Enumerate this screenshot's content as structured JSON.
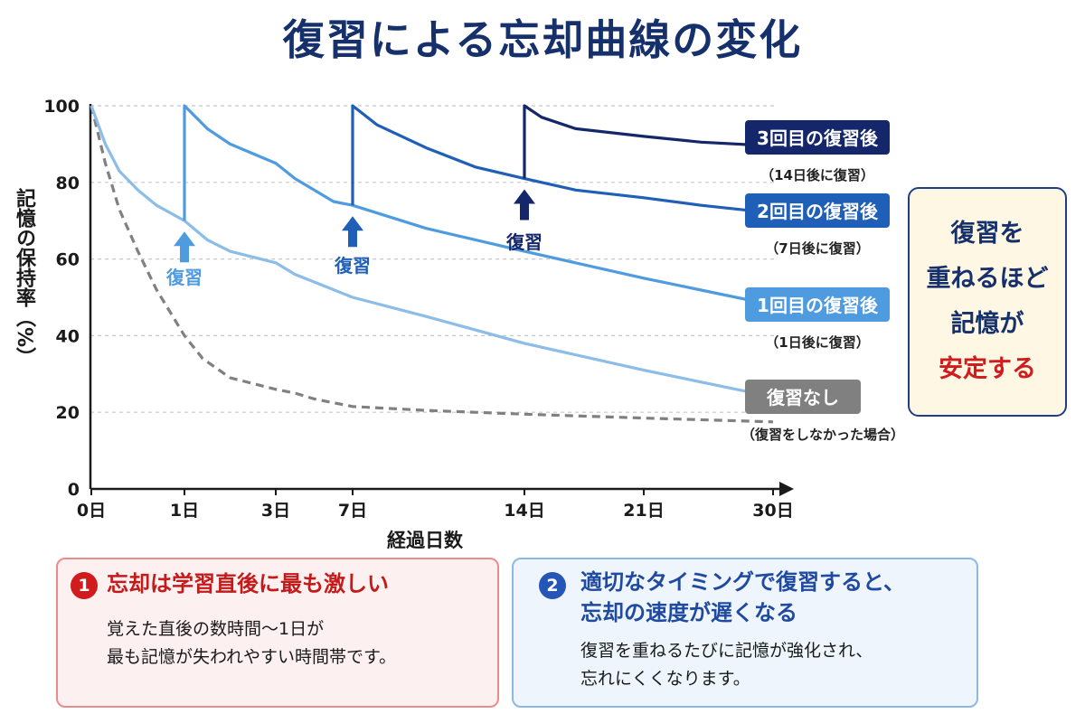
{
  "title": "復習による忘却曲線の変化",
  "colors": {
    "title": "#15306b",
    "no_review": "#808080",
    "review1": "#8cbce8",
    "review2": "#4e9be0",
    "review3": "#1f5fb8",
    "review4": "#15276b",
    "accent_red": "#d01c1c"
  },
  "chart_data": {
    "type": "line",
    "title": "復習による忘却曲線の変化",
    "xlabel": "経過日数",
    "ylabel": "記憶の保持率（%）",
    "x_ticks": [
      "0日",
      "1日",
      "3日",
      "7日",
      "14日",
      "21日",
      "30日"
    ],
    "x_tick_days": [
      0,
      1,
      3,
      7,
      14,
      21,
      30
    ],
    "y_ticks": [
      0,
      20,
      40,
      60,
      80,
      100
    ],
    "ylim": [
      0,
      100
    ],
    "grid": "horizontal dashed",
    "series": [
      {
        "name": "復習なし",
        "note": "（復習をしなかった場合）",
        "style": "dashed",
        "points": [
          [
            0,
            100
          ],
          [
            0.15,
            85
          ],
          [
            0.3,
            73
          ],
          [
            0.5,
            62
          ],
          [
            0.7,
            52
          ],
          [
            1,
            40
          ],
          [
            1.4,
            34
          ],
          [
            2,
            29
          ],
          [
            3,
            26
          ],
          [
            4,
            25
          ],
          [
            5,
            23.5
          ],
          [
            7,
            21.5
          ],
          [
            10,
            20.5
          ],
          [
            14,
            19.5
          ],
          [
            21,
            18.5
          ],
          [
            30,
            17.5
          ]
        ]
      },
      {
        "name": "",
        "style": "solid",
        "points": [
          [
            0,
            100
          ],
          [
            0.15,
            90
          ],
          [
            0.3,
            83
          ],
          [
            0.5,
            78
          ],
          [
            0.7,
            74
          ],
          [
            1,
            70
          ],
          [
            1.5,
            65
          ],
          [
            2,
            62
          ],
          [
            3,
            59
          ],
          [
            4,
            56
          ],
          [
            5,
            54
          ],
          [
            7,
            50
          ],
          [
            10,
            45
          ],
          [
            14,
            38
          ],
          [
            21,
            31
          ],
          [
            30,
            24
          ]
        ]
      },
      {
        "name": "1回目の復習後",
        "note": "（1日後に復習）",
        "style": "solid",
        "points": [
          [
            1,
            70
          ],
          [
            1,
            100
          ],
          [
            1.5,
            94
          ],
          [
            2,
            90
          ],
          [
            3,
            85
          ],
          [
            4,
            81
          ],
          [
            5,
            78
          ],
          [
            6,
            75
          ],
          [
            7,
            74
          ],
          [
            8,
            72
          ],
          [
            10,
            68
          ],
          [
            14,
            62
          ],
          [
            21,
            55
          ],
          [
            30,
            48
          ]
        ]
      },
      {
        "name": "2回目の復習後",
        "note": "（7日後に復習）",
        "style": "solid",
        "points": [
          [
            7,
            74
          ],
          [
            7,
            100
          ],
          [
            8,
            95
          ],
          [
            10,
            89
          ],
          [
            12,
            84
          ],
          [
            14,
            81
          ],
          [
            17,
            78
          ],
          [
            21,
            76
          ],
          [
            25,
            74
          ],
          [
            30,
            72
          ]
        ]
      },
      {
        "name": "3回目の復習後",
        "note": "（14日後に復習）",
        "style": "solid",
        "points": [
          [
            14,
            81
          ],
          [
            14,
            100
          ],
          [
            15,
            97
          ],
          [
            17,
            94
          ],
          [
            21,
            92
          ],
          [
            25,
            90.5
          ],
          [
            30,
            89.5
          ]
        ]
      }
    ],
    "annotations": [
      {
        "text": "復習",
        "day": 1,
        "arrow_to": 70
      },
      {
        "text": "復習",
        "day": 7,
        "arrow_to": 74
      },
      {
        "text": "復習",
        "day": 14,
        "arrow_to": 81
      }
    ]
  },
  "key_message": {
    "line1": "復習を",
    "line2": "重ねるほど",
    "line3": "記憶が",
    "line4": "安定する"
  },
  "points": [
    {
      "number": "1",
      "heading": "忘却は学習直後に最も激しい",
      "body_line1": "覚えた直後の数時間〜1日が",
      "body_line2": "最も記憶が失われやすい時間帯です。"
    },
    {
      "number": "2",
      "heading_line1": "適切なタイミングで復習すると、",
      "heading_line2": "忘却の速度が遅くなる",
      "body_line1": "復習を重ねるたびに記憶が強化され、",
      "body_line2": "忘れにくくなります。"
    }
  ]
}
